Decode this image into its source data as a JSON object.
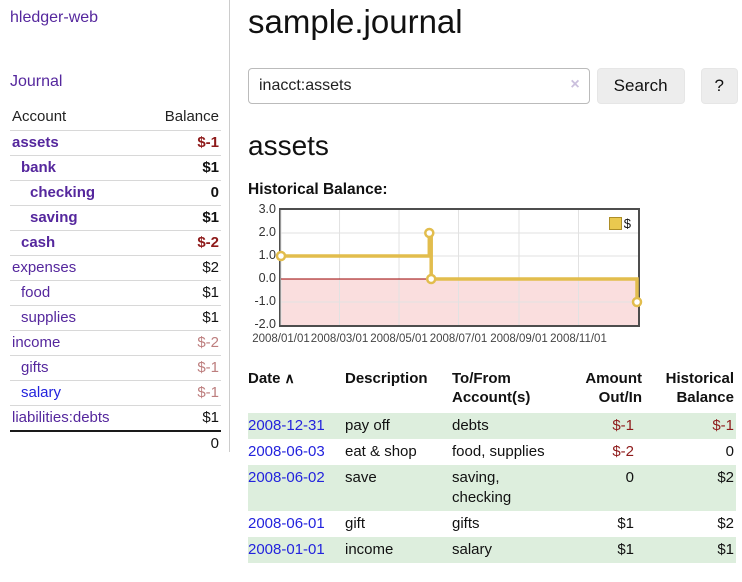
{
  "colors": {
    "link_purple": "#55279d",
    "link_blue": "#2323dd",
    "negative_strong": "#8e1a1a",
    "negative_soft": "#bd7e7e",
    "row_green": "#ddeedd",
    "chart_line_gold": "#e2bd4d",
    "chart_fill_pink": "#fadede",
    "chart_zero_line_red": "#990000",
    "chart_border": "#4d4d4d"
  },
  "sidebar": {
    "brand": "hledger-web",
    "journal_link": "Journal",
    "columns": {
      "account": "Account",
      "balance": "Balance"
    },
    "accounts": [
      {
        "label": "assets",
        "depth": 1,
        "bold": true,
        "balance": "$-1",
        "balance_tone": "neg",
        "link_color": "purple"
      },
      {
        "label": "bank",
        "depth": 2,
        "bold": true,
        "balance": "$1",
        "balance_tone": "pos",
        "link_color": "purple"
      },
      {
        "label": "checking",
        "depth": 3,
        "bold": true,
        "balance": "0",
        "balance_tone": "pos",
        "link_color": "purple"
      },
      {
        "label": "saving",
        "depth": 3,
        "bold": true,
        "balance": "$1",
        "balance_tone": "pos",
        "link_color": "purple"
      },
      {
        "label": "cash",
        "depth": 2,
        "bold": true,
        "balance": "$-2",
        "balance_tone": "neg",
        "link_color": "purple"
      },
      {
        "label": "expenses",
        "depth": 1,
        "bold": false,
        "balance": "$2",
        "balance_tone": "pos",
        "link_color": "purple"
      },
      {
        "label": "food",
        "depth": 2,
        "bold": false,
        "balance": "$1",
        "balance_tone": "pos",
        "link_color": "purple"
      },
      {
        "label": "supplies",
        "depth": 2,
        "bold": false,
        "balance": "$1",
        "balance_tone": "pos",
        "link_color": "purple"
      },
      {
        "label": "income",
        "depth": 1,
        "bold": false,
        "balance": "$-2",
        "balance_tone": "negsoft",
        "link_color": "purple"
      },
      {
        "label": "gifts",
        "depth": 2,
        "bold": false,
        "balance": "$-1",
        "balance_tone": "negsoft",
        "link_color": "purple"
      },
      {
        "label": "salary",
        "depth": 2,
        "bold": false,
        "balance": "$-1",
        "balance_tone": "negsoft",
        "link_color": "blue"
      },
      {
        "label": "liabilities:debts",
        "depth": 1,
        "bold": false,
        "balance": "$1",
        "balance_tone": "pos",
        "link_color": "purple"
      }
    ],
    "total": "0"
  },
  "main": {
    "title": "sample.journal",
    "search": {
      "value": "inacct:assets",
      "clear_icon": "×",
      "search_button": "Search",
      "help_button": "?"
    },
    "account_heading": "assets",
    "chart_heading": "Historical Balance:"
  },
  "chart_data": {
    "type": "line",
    "step": "after",
    "title": "Historical Balance:",
    "series": [
      {
        "name": "$",
        "points": [
          {
            "x": "2008-01-01",
            "y": 1
          },
          {
            "x": "2008-06-01",
            "y": 2
          },
          {
            "x": "2008-06-03",
            "y": 0
          },
          {
            "x": "2008-12-31",
            "y": -1
          }
        ]
      }
    ],
    "x_domain": [
      "2008-01-01",
      "2009-01-01"
    ],
    "ylim": [
      -2,
      3
    ],
    "y_ticks": [
      "3.0",
      "2.0",
      "1.0",
      "0.0",
      "-1.0",
      "-2.0"
    ],
    "x_ticks": [
      "2008/01/01",
      "2008/03/01",
      "2008/05/01",
      "2008/07/01",
      "2008/09/01",
      "2008/11/01"
    ],
    "legend": {
      "label": "$",
      "position": "top-right"
    },
    "grid": true,
    "negative_region_shaded": true
  },
  "register": {
    "headers": {
      "date": "Date",
      "sort_icon": "∧",
      "description": "Description",
      "accounts_line1": "To/From",
      "accounts_line2": "Account(s)",
      "amount_line1": "Amount",
      "amount_line2": "Out/In",
      "balance_line1": "Historical",
      "balance_line2": "Balance"
    },
    "rows": [
      {
        "date": "2008-12-31",
        "description": "pay off",
        "accounts": "debts",
        "amount": "$-1",
        "amount_tone": "neg",
        "balance": "$-1",
        "balance_tone": "neg",
        "shaded": true
      },
      {
        "date": "2008-06-03",
        "description": "eat & shop",
        "accounts": "food, supplies",
        "amount": "$-2",
        "amount_tone": "neg",
        "balance": "0",
        "balance_tone": "pos",
        "shaded": false
      },
      {
        "date": "2008-06-02",
        "description": "save",
        "accounts": "saving, checking",
        "amount": "0",
        "amount_tone": "pos",
        "balance": "$2",
        "balance_tone": "pos",
        "shaded": true
      },
      {
        "date": "2008-06-01",
        "description": "gift",
        "accounts": "gifts",
        "amount": "$1",
        "amount_tone": "pos",
        "balance": "$2",
        "balance_tone": "pos",
        "shaded": false
      },
      {
        "date": "2008-01-01",
        "description": "income",
        "accounts": "salary",
        "amount": "$1",
        "amount_tone": "pos",
        "balance": "$1",
        "balance_tone": "pos",
        "shaded": true
      }
    ]
  }
}
